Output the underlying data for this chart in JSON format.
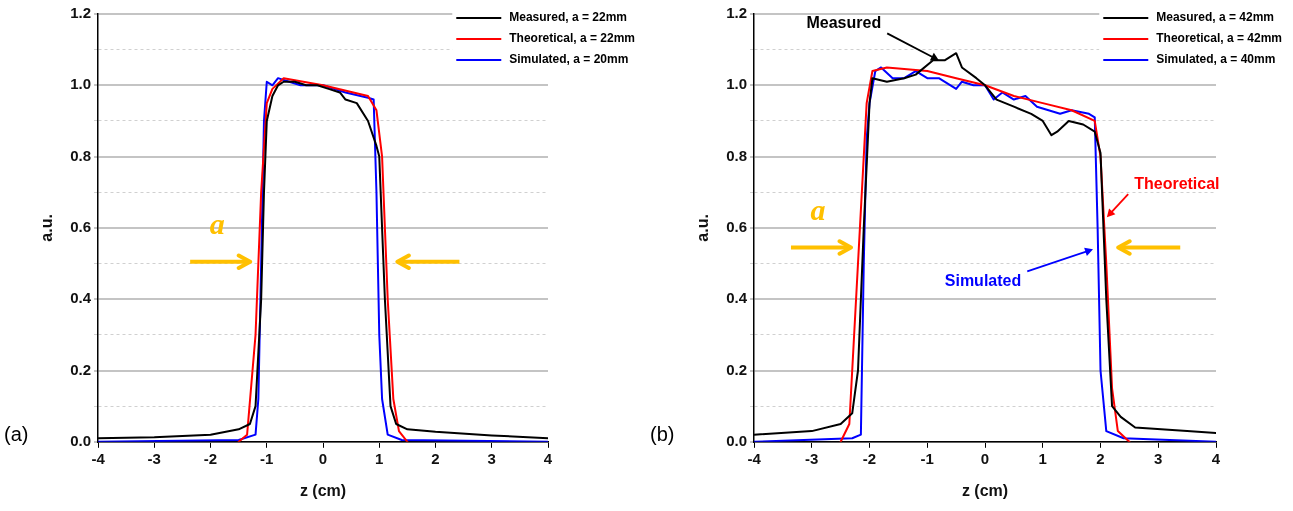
{
  "chart_data": [
    {
      "type": "line",
      "xlabel": "z (cm)",
      "ylabel": "a.u.",
      "xlim": [
        -4,
        4
      ],
      "xticks": [
        -4,
        -3,
        -2,
        -1,
        0,
        1,
        2,
        3,
        4
      ],
      "ylim": [
        0,
        1.2
      ],
      "yticks": [
        {
          "value": 0,
          "label": "0.0"
        },
        {
          "value": 0.1,
          "label": null
        },
        {
          "value": 0.2,
          "label": "0.2"
        },
        {
          "value": 0.3,
          "label": null
        },
        {
          "value": 0.4,
          "label": "0.4"
        },
        {
          "value": 0.5,
          "label": null
        },
        {
          "value": 0.6,
          "label": "0.6"
        },
        {
          "value": 0.7,
          "label": null
        },
        {
          "value": 0.8,
          "label": "0.8"
        },
        {
          "value": 0.9,
          "label": null
        },
        {
          "value": 1,
          "label": "1.0"
        },
        {
          "value": 1.1,
          "label": null
        },
        {
          "value": 1.2,
          "label": "1.2"
        }
      ],
      "grid": "y",
      "legend": "top right",
      "annotations": [
        "(a)",
        "a"
      ],
      "series": [
        {
          "name": "Measured, a = 22mm",
          "color": "#000000",
          "x": [
            -4,
            -3,
            -2,
            -1.5,
            -1.3,
            -1.2,
            -1.1,
            -1.05,
            -1,
            -0.9,
            -0.8,
            -0.7,
            -0.5,
            -0.3,
            -0.1,
            0.1,
            0.3,
            0.4,
            0.6,
            0.8,
            0.95,
            1.0,
            1.1,
            1.2,
            1.3,
            1.5,
            2,
            3,
            4
          ],
          "values": [
            0.01,
            0.013,
            0.02,
            0.035,
            0.05,
            0.1,
            0.4,
            0.7,
            0.9,
            0.97,
            1.0,
            1.01,
            1.01,
            1.0,
            1.0,
            0.99,
            0.98,
            0.96,
            0.95,
            0.9,
            0.83,
            0.8,
            0.4,
            0.1,
            0.05,
            0.035,
            0.028,
            0.018,
            0.01
          ]
        },
        {
          "name": "Theoretical, a = 22mm",
          "color": "#ff0000",
          "x": [
            -1.5,
            -1.35,
            -1.2,
            -1.1,
            -1,
            -0.9,
            -0.7,
            0,
            0.8,
            0.95,
            1.05,
            1.15,
            1.25,
            1.35,
            1.5
          ],
          "values": [
            0,
            0.02,
            0.3,
            0.7,
            0.95,
            0.99,
            1.02,
            1.0,
            0.97,
            0.93,
            0.8,
            0.4,
            0.12,
            0.03,
            0
          ]
        },
        {
          "name": "Simulated, a = 20mm",
          "color": "#0000ff",
          "x": [
            -4,
            -1.5,
            -1.2,
            -1.15,
            -1.1,
            -1.05,
            -1,
            -0.9,
            -0.8,
            -0.6,
            -0.4,
            -0.2,
            0,
            0.4,
            0.8,
            0.9,
            0.95,
            1,
            1.05,
            1.15,
            1.4,
            4
          ],
          "values": [
            0,
            0.005,
            0.02,
            0.12,
            0.5,
            0.9,
            1.01,
            1.0,
            1.02,
            1.01,
            1.0,
            1.0,
            1.0,
            0.98,
            0.965,
            0.96,
            0.7,
            0.3,
            0.12,
            0.02,
            0.005,
            0
          ]
        }
      ]
    },
    {
      "type": "line",
      "xlabel": "z (cm)",
      "ylabel": "a.u.",
      "xlim": [
        -4,
        4
      ],
      "xticks": [
        -4,
        -3,
        -2,
        -1,
        0,
        1,
        2,
        3,
        4
      ],
      "ylim": [
        0,
        1.2
      ],
      "yticks": [
        {
          "value": 0,
          "label": "0.0"
        },
        {
          "value": 0.1,
          "label": null
        },
        {
          "value": 0.2,
          "label": "0.2"
        },
        {
          "value": 0.3,
          "label": null
        },
        {
          "value": 0.4,
          "label": "0.4"
        },
        {
          "value": 0.5,
          "label": null
        },
        {
          "value": 0.6,
          "label": "0.6"
        },
        {
          "value": 0.7,
          "label": null
        },
        {
          "value": 0.8,
          "label": "0.8"
        },
        {
          "value": 0.9,
          "label": null
        },
        {
          "value": 1,
          "label": "1.0"
        },
        {
          "value": 1.1,
          "label": null
        },
        {
          "value": 1.2,
          "label": "1.2"
        }
      ],
      "grid": "y",
      "legend": "top right",
      "annotations": [
        "(b)",
        "a",
        {
          "text": "Measured",
          "x": -0.8,
          "y": 1.07
        },
        {
          "text": "Theoretical",
          "x": 2.11,
          "y": 0.63
        },
        {
          "text": "Simulated",
          "x": 1.87,
          "y": 0.54
        }
      ],
      "series": [
        {
          "name": "Measured, a = 42mm",
          "color": "#000000",
          "x": [
            -4,
            -3,
            -2.5,
            -2.3,
            -2.2,
            -2.1,
            -2,
            -1.95,
            -1.7,
            -1.4,
            -1.2,
            -0.9,
            -0.7,
            -0.5,
            -0.4,
            -0.15,
            0,
            0.2,
            0.5,
            0.8,
            1,
            1.15,
            1.25,
            1.45,
            1.7,
            1.9,
            2,
            2.1,
            2.2,
            2.35,
            2.6,
            3.5,
            4
          ],
          "values": [
            0.02,
            0.03,
            0.05,
            0.08,
            0.2,
            0.6,
            0.95,
            1.02,
            1.01,
            1.02,
            1.03,
            1.07,
            1.07,
            1.09,
            1.05,
            1.02,
            1.0,
            0.96,
            0.94,
            0.92,
            0.9,
            0.86,
            0.87,
            0.9,
            0.89,
            0.87,
            0.81,
            0.4,
            0.1,
            0.07,
            0.04,
            0.03,
            0.025
          ]
        },
        {
          "name": "Theoretical, a = 42mm",
          "color": "#ff0000",
          "x": [
            -2.5,
            -2.35,
            -2.2,
            -2.05,
            -1.95,
            -1.7,
            -1,
            -0.5,
            0,
            0.5,
            1,
            1.5,
            1.9,
            2,
            2.1,
            2.2,
            2.3,
            2.5
          ],
          "values": [
            0,
            0.05,
            0.5,
            0.95,
            1.04,
            1.05,
            1.04,
            1.02,
            1.0,
            0.97,
            0.95,
            0.93,
            0.9,
            0.8,
            0.5,
            0.15,
            0.03,
            0
          ]
        },
        {
          "name": "Simulated, a = 40mm",
          "color": "#0000ff",
          "x": [
            -4,
            -2.3,
            -2.15,
            -2.1,
            -2.05,
            -2,
            -1.9,
            -1.8,
            -1.6,
            -1.4,
            -1.2,
            -1,
            -0.8,
            -0.5,
            -0.4,
            -0.2,
            0,
            0.15,
            0.3,
            0.5,
            0.7,
            0.9,
            1.1,
            1.3,
            1.5,
            1.8,
            1.9,
            1.95,
            2,
            2.1,
            2.4,
            4
          ],
          "values": [
            0,
            0.01,
            0.02,
            0.5,
            0.85,
            0.95,
            1.04,
            1.05,
            1.02,
            1.02,
            1.04,
            1.02,
            1.02,
            0.99,
            1.01,
            1.0,
            1.0,
            0.96,
            0.98,
            0.96,
            0.97,
            0.94,
            0.93,
            0.92,
            0.93,
            0.92,
            0.91,
            0.6,
            0.2,
            0.03,
            0.01,
            0
          ]
        }
      ]
    }
  ]
}
